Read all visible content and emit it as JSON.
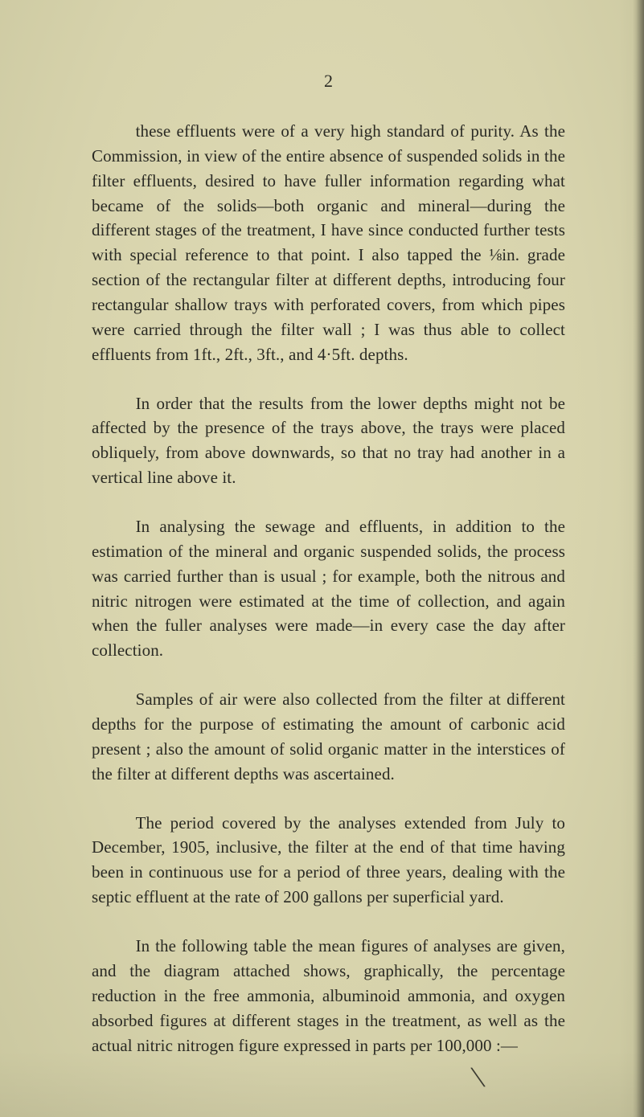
{
  "page": {
    "number": "2",
    "background_color": "#d9d6b0",
    "text_color": "#2a2a24",
    "font_family": "Georgia, 'Times New Roman', serif",
    "body_font_size_pt": 16,
    "page_number_font_size_pt": 17,
    "line_height": 1.47,
    "paragraphs": [
      "these effluents were of a very high standard of purity. As the Commission, in view of the entire absence of suspended solids in the filter effluents, desired to have fuller informa­tion regarding what became of the solids—both organic and mineral—during the different stages of the treatment, I have since conducted further tests with special reference to that point. I also tapped the ⅛in. grade section of the rectan­gular filter at different depths, introducing four rectangular shallow trays with perforated covers, from which pipes were carried through the filter wall ; I was thus able to collect effluents from 1ft., 2ft., 3ft., and 4·5ft. depths.",
      "In order that the results from the lower depths might not be affected by the presence of the trays above, the trays were placed obliquely, from above downwards, so that no tray had another in a vertical line above it.",
      "In analysing the sewage and effluents, in addition to the estimation of the mineral and organic suspended solids, the process was carried further than is usual ; for example, both the nitrous and nitric nitrogen were estimated at the time of collection, and again when the fuller analyses were made—in every case the day after collection.",
      "Samples of air were also collected from the filter at different depths for the purpose of estimating the amount of carbonic acid present ; also the amount of solid organic matter in the interstices of the filter at different depths was ascertained.",
      "The period covered by the analyses extended from July to December, 1905, inclusive, the filter at the end of that time having been in continuous use for a period of three years, dealing with the septic effluent at the rate of 200 gallons per superficial yard.",
      "In the following table the mean figures of analyses are given, and the diagram attached shows, graphically, the percentage reduction in the free ammonia, albuminoid ammo­nia, and oxygen absorbed figures at different stages in the treatment, as well as the actual nitric nitrogen figure expressed in parts per 100,000 :—"
    ],
    "decor_mark": "╲"
  }
}
